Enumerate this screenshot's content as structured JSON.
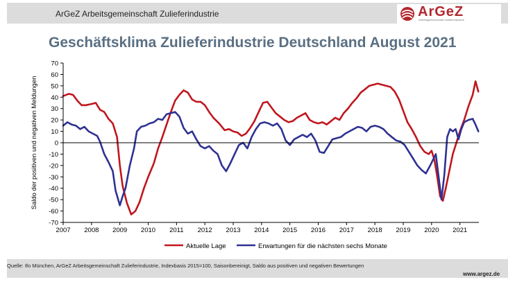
{
  "header": {
    "org_text": "ArGeZ Arbeitsgemeinschaft Zulieferindustrie",
    "logo_name": "ArGeZ",
    "logo_sub": "Arbeitsgemeinschaft Zulieferindustrie"
  },
  "footer": {
    "source": "Quelle: Ifo München, ArGeZ Arbeitsgemeinschaft Zulieferindustrie, Indexbasis 2015=100, Saisonbereinigt, Saldo aus positiven und negativen Bewertungen",
    "url": "www.argez.de"
  },
  "colors": {
    "lage": "#c0161d",
    "erwartungen": "#2e3192",
    "title": "#5a6f82",
    "brand": "#b2282e"
  },
  "chart_data": {
    "type": "line",
    "title": "Geschäftsklima Zulieferindustrie Deutschland August 2021",
    "ylabel": "Saldo der positiven und negativen Meldungen",
    "xlabel": "",
    "ylim": [
      -70,
      70
    ],
    "yticks": [
      -70,
      -60,
      -50,
      -40,
      -30,
      -20,
      -10,
      0,
      10,
      20,
      30,
      40,
      50,
      60,
      70
    ],
    "xlim": [
      2007.0,
      2021.67
    ],
    "xticks": [
      "2007",
      "2008",
      "2009",
      "2010",
      "2011",
      "2012",
      "2013",
      "2014",
      "2015",
      "2016",
      "2017",
      "2018",
      "2019",
      "2020",
      "2021"
    ],
    "grid": false,
    "legend": "bottom",
    "series": [
      {
        "name": "Aktuelle Lage",
        "color": "#c0161d",
        "points": [
          [
            2007.0,
            41
          ],
          [
            2007.2,
            43
          ],
          [
            2007.35,
            42
          ],
          [
            2007.5,
            37
          ],
          [
            2007.65,
            33
          ],
          [
            2007.8,
            33
          ],
          [
            2008.0,
            34
          ],
          [
            2008.15,
            35
          ],
          [
            2008.3,
            29
          ],
          [
            2008.45,
            27
          ],
          [
            2008.6,
            21
          ],
          [
            2008.75,
            17
          ],
          [
            2008.9,
            5
          ],
          [
            2009.0,
            -20
          ],
          [
            2009.1,
            -38
          ],
          [
            2009.25,
            -53
          ],
          [
            2009.4,
            -63
          ],
          [
            2009.55,
            -60
          ],
          [
            2009.7,
            -52
          ],
          [
            2009.85,
            -40
          ],
          [
            2010.0,
            -30
          ],
          [
            2010.2,
            -18
          ],
          [
            2010.35,
            -5
          ],
          [
            2010.5,
            5
          ],
          [
            2010.65,
            16
          ],
          [
            2010.8,
            27
          ],
          [
            2010.95,
            37
          ],
          [
            2011.1,
            42
          ],
          [
            2011.25,
            46
          ],
          [
            2011.4,
            44
          ],
          [
            2011.55,
            38
          ],
          [
            2011.7,
            36
          ],
          [
            2011.85,
            36
          ],
          [
            2012.0,
            33
          ],
          [
            2012.15,
            27
          ],
          [
            2012.3,
            22
          ],
          [
            2012.5,
            17
          ],
          [
            2012.7,
            11
          ],
          [
            2012.85,
            12
          ],
          [
            2013.0,
            10
          ],
          [
            2013.15,
            9
          ],
          [
            2013.3,
            6
          ],
          [
            2013.45,
            8
          ],
          [
            2013.6,
            13
          ],
          [
            2013.75,
            19
          ],
          [
            2013.9,
            27
          ],
          [
            2014.05,
            35
          ],
          [
            2014.2,
            36
          ],
          [
            2014.35,
            31
          ],
          [
            2014.5,
            26
          ],
          [
            2014.65,
            23
          ],
          [
            2014.8,
            20
          ],
          [
            2014.95,
            18
          ],
          [
            2015.1,
            19
          ],
          [
            2015.25,
            22
          ],
          [
            2015.4,
            24
          ],
          [
            2015.55,
            26
          ],
          [
            2015.7,
            20
          ],
          [
            2015.85,
            18
          ],
          [
            2016.0,
            17
          ],
          [
            2016.15,
            18
          ],
          [
            2016.3,
            16
          ],
          [
            2016.45,
            19
          ],
          [
            2016.6,
            22
          ],
          [
            2016.75,
            20
          ],
          [
            2016.9,
            26
          ],
          [
            2017.05,
            30
          ],
          [
            2017.2,
            35
          ],
          [
            2017.35,
            39
          ],
          [
            2017.5,
            44
          ],
          [
            2017.65,
            47
          ],
          [
            2017.8,
            50
          ],
          [
            2017.95,
            51
          ],
          [
            2018.1,
            52
          ],
          [
            2018.25,
            51
          ],
          [
            2018.4,
            50
          ],
          [
            2018.55,
            49
          ],
          [
            2018.7,
            45
          ],
          [
            2018.85,
            38
          ],
          [
            2019.0,
            28
          ],
          [
            2019.15,
            18
          ],
          [
            2019.3,
            12
          ],
          [
            2019.45,
            5
          ],
          [
            2019.6,
            -3
          ],
          [
            2019.75,
            -8
          ],
          [
            2019.9,
            -10
          ],
          [
            2020.0,
            -7
          ],
          [
            2020.1,
            -15
          ],
          [
            2020.2,
            -30
          ],
          [
            2020.3,
            -47
          ],
          [
            2020.4,
            -51
          ],
          [
            2020.5,
            -40
          ],
          [
            2020.6,
            -28
          ],
          [
            2020.75,
            -10
          ],
          [
            2020.9,
            2
          ],
          [
            2021.0,
            10
          ],
          [
            2021.15,
            20
          ],
          [
            2021.3,
            32
          ],
          [
            2021.45,
            42
          ],
          [
            2021.55,
            54
          ],
          [
            2021.65,
            45
          ]
        ]
      },
      {
        "name": "Erwartungen für die nächsten sechs Monate",
        "color": "#2e3192",
        "points": [
          [
            2007.0,
            15
          ],
          [
            2007.15,
            18
          ],
          [
            2007.3,
            16
          ],
          [
            2007.45,
            15
          ],
          [
            2007.6,
            12
          ],
          [
            2007.75,
            14
          ],
          [
            2007.9,
            10
          ],
          [
            2008.05,
            8
          ],
          [
            2008.2,
            6
          ],
          [
            2008.3,
            1
          ],
          [
            2008.45,
            -10
          ],
          [
            2008.6,
            -17
          ],
          [
            2008.75,
            -25
          ],
          [
            2008.85,
            -42
          ],
          [
            2009.0,
            -55
          ],
          [
            2009.1,
            -47
          ],
          [
            2009.2,
            -40
          ],
          [
            2009.35,
            -20
          ],
          [
            2009.5,
            -5
          ],
          [
            2009.6,
            10
          ],
          [
            2009.75,
            14
          ],
          [
            2009.9,
            15
          ],
          [
            2010.05,
            17
          ],
          [
            2010.2,
            18
          ],
          [
            2010.35,
            21
          ],
          [
            2010.5,
            20
          ],
          [
            2010.65,
            25
          ],
          [
            2010.8,
            26
          ],
          [
            2010.95,
            27
          ],
          [
            2011.1,
            23
          ],
          [
            2011.25,
            13
          ],
          [
            2011.4,
            8
          ],
          [
            2011.55,
            10
          ],
          [
            2011.7,
            3
          ],
          [
            2011.85,
            -3
          ],
          [
            2012.0,
            -5
          ],
          [
            2012.15,
            -3
          ],
          [
            2012.3,
            -7
          ],
          [
            2012.45,
            -10
          ],
          [
            2012.6,
            -20
          ],
          [
            2012.75,
            -25
          ],
          [
            2012.9,
            -18
          ],
          [
            2013.05,
            -10
          ],
          [
            2013.2,
            -2
          ],
          [
            2013.35,
            0
          ],
          [
            2013.5,
            -5
          ],
          [
            2013.65,
            5
          ],
          [
            2013.8,
            12
          ],
          [
            2013.95,
            17
          ],
          [
            2014.1,
            18
          ],
          [
            2014.25,
            17
          ],
          [
            2014.4,
            15
          ],
          [
            2014.55,
            17
          ],
          [
            2014.7,
            12
          ],
          [
            2014.85,
            2
          ],
          [
            2015.0,
            -2
          ],
          [
            2015.15,
            3
          ],
          [
            2015.3,
            5
          ],
          [
            2015.45,
            7
          ],
          [
            2015.6,
            5
          ],
          [
            2015.75,
            8
          ],
          [
            2015.9,
            2
          ],
          [
            2016.05,
            -8
          ],
          [
            2016.2,
            -9
          ],
          [
            2016.35,
            -3
          ],
          [
            2016.5,
            3
          ],
          [
            2016.65,
            4
          ],
          [
            2016.8,
            5
          ],
          [
            2016.95,
            8
          ],
          [
            2017.1,
            10
          ],
          [
            2017.25,
            12
          ],
          [
            2017.4,
            14
          ],
          [
            2017.55,
            13
          ],
          [
            2017.7,
            10
          ],
          [
            2017.85,
            14
          ],
          [
            2018.0,
            15
          ],
          [
            2018.15,
            14
          ],
          [
            2018.3,
            12
          ],
          [
            2018.45,
            8
          ],
          [
            2018.6,
            5
          ],
          [
            2018.75,
            2
          ],
          [
            2018.9,
            1
          ],
          [
            2019.05,
            -2
          ],
          [
            2019.2,
            -8
          ],
          [
            2019.35,
            -14
          ],
          [
            2019.5,
            -20
          ],
          [
            2019.65,
            -24
          ],
          [
            2019.8,
            -27
          ],
          [
            2019.95,
            -20
          ],
          [
            2020.05,
            -15
          ],
          [
            2020.15,
            -10
          ],
          [
            2020.25,
            -30
          ],
          [
            2020.35,
            -50
          ],
          [
            2020.45,
            -28
          ],
          [
            2020.55,
            5
          ],
          [
            2020.65,
            12
          ],
          [
            2020.75,
            10
          ],
          [
            2020.85,
            12
          ],
          [
            2020.95,
            3
          ],
          [
            2021.05,
            12
          ],
          [
            2021.15,
            18
          ],
          [
            2021.3,
            20
          ],
          [
            2021.45,
            21
          ],
          [
            2021.55,
            16
          ],
          [
            2021.65,
            10
          ]
        ]
      }
    ]
  }
}
